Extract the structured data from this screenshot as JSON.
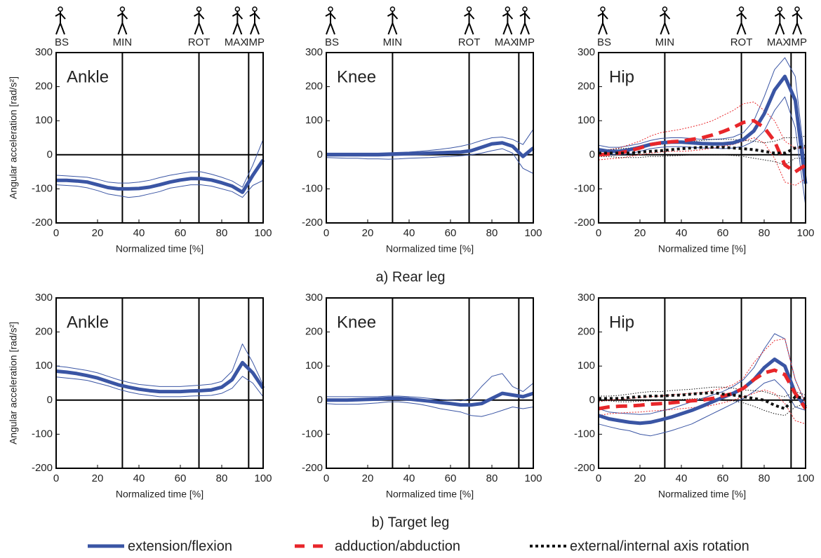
{
  "captions": [
    "a) Rear leg",
    "b) Target leg"
  ],
  "chart_data": [
    {
      "type": "line",
      "title": "Ankle",
      "ylabel": "Angular acceleration [rad/s²]",
      "xlabel": "Normalized time [%]",
      "phases": [
        "BS",
        "MIN",
        "ROT",
        "MAX",
        "IMP"
      ],
      "event_x": [
        32,
        69,
        93
      ],
      "xlim": [
        0,
        100
      ],
      "ylim": [
        -200,
        300
      ],
      "xticks": [
        0,
        20,
        40,
        60,
        80,
        100
      ],
      "yticks": [
        -200,
        -100,
        0,
        100,
        200,
        300
      ],
      "x": [
        0,
        5,
        10,
        15,
        20,
        25,
        30,
        35,
        40,
        45,
        50,
        55,
        60,
        65,
        70,
        75,
        80,
        85,
        90,
        95,
        100
      ],
      "series": [
        {
          "color": "#3a55a4",
          "style": "solid",
          "values": [
            -75,
            -75,
            -77,
            -80,
            -88,
            -96,
            -100,
            -100,
            -99,
            -95,
            -88,
            -80,
            -74,
            -70,
            -70,
            -74,
            -82,
            -92,
            -110,
            -60,
            -15
          ],
          "upper": [
            -60,
            -62,
            -64,
            -66,
            -72,
            -80,
            -83,
            -83,
            -80,
            -75,
            -67,
            -60,
            -55,
            -50,
            -50,
            -57,
            -66,
            -77,
            -95,
            -30,
            45
          ],
          "lower": [
            -88,
            -90,
            -92,
            -97,
            -105,
            -115,
            -120,
            -125,
            -122,
            -115,
            -108,
            -98,
            -93,
            -88,
            -88,
            -92,
            -100,
            -108,
            -125,
            -90,
            -75
          ]
        }
      ]
    },
    {
      "type": "line",
      "title": "Knee",
      "xlabel": "Normalized time [%]",
      "phases": [
        "BS",
        "MIN",
        "ROT",
        "MAX",
        "IMP"
      ],
      "event_x": [
        32,
        69,
        93
      ],
      "xlim": [
        0,
        100
      ],
      "ylim": [
        -200,
        300
      ],
      "xticks": [
        0,
        20,
        40,
        60,
        80,
        100
      ],
      "yticks": [
        -200,
        -100,
        0,
        100,
        200,
        300
      ],
      "x": [
        0,
        5,
        10,
        15,
        20,
        25,
        30,
        35,
        40,
        45,
        50,
        55,
        60,
        65,
        70,
        75,
        80,
        85,
        90,
        95,
        100
      ],
      "series": [
        {
          "color": "#3a55a4",
          "style": "solid",
          "values": [
            0,
            0,
            0,
            0,
            0,
            0,
            1,
            2,
            3,
            4,
            5,
            6,
            7,
            8,
            12,
            22,
            32,
            35,
            25,
            -5,
            20
          ],
          "upper": [
            5,
            5,
            5,
            5,
            5,
            5,
            6,
            7,
            8,
            10,
            13,
            16,
            20,
            25,
            32,
            42,
            50,
            52,
            45,
            30,
            75
          ],
          "lower": [
            -8,
            -9,
            -10,
            -10,
            -12,
            -12,
            -13,
            -12,
            -10,
            -9,
            -8,
            -6,
            -5,
            -3,
            0,
            5,
            12,
            18,
            5,
            -40,
            -55
          ]
        }
      ]
    },
    {
      "type": "line",
      "title": "Hip",
      "xlabel": "Normalized time [%]",
      "phases": [
        "BS",
        "MIN",
        "ROT",
        "MAX",
        "IMP"
      ],
      "event_x": [
        32,
        69,
        93
      ],
      "xlim": [
        0,
        100
      ],
      "ylim": [
        -200,
        300
      ],
      "xticks": [
        0,
        20,
        40,
        60,
        80,
        100
      ],
      "yticks": [
        -200,
        -100,
        0,
        100,
        200,
        300
      ],
      "x": [
        0,
        5,
        10,
        15,
        20,
        25,
        30,
        35,
        40,
        45,
        50,
        55,
        60,
        65,
        70,
        75,
        80,
        85,
        90,
        95,
        100
      ],
      "series": [
        {
          "color": "#3a55a4",
          "style": "solid",
          "values": [
            15,
            10,
            10,
            15,
            22,
            30,
            35,
            37,
            37,
            35,
            33,
            32,
            32,
            35,
            45,
            70,
            120,
            190,
            230,
            160,
            -85
          ],
          "upper": [
            28,
            22,
            22,
            27,
            33,
            42,
            48,
            50,
            50,
            48,
            45,
            45,
            47,
            52,
            65,
            100,
            170,
            250,
            285,
            230,
            -40
          ],
          "lower": [
            5,
            0,
            0,
            3,
            10,
            18,
            22,
            24,
            24,
            22,
            20,
            20,
            18,
            20,
            25,
            40,
            70,
            130,
            170,
            80,
            -150
          ]
        },
        {
          "color": "#e8262a",
          "style": "dashed",
          "values": [
            0,
            2,
            5,
            12,
            20,
            30,
            35,
            38,
            40,
            45,
            50,
            58,
            68,
            80,
            95,
            100,
            80,
            40,
            -30,
            -50,
            -30
          ],
          "upper": [
            15,
            15,
            20,
            30,
            40,
            55,
            65,
            70,
            75,
            82,
            90,
            100,
            115,
            130,
            150,
            155,
            130,
            100,
            40,
            20,
            20
          ],
          "lower": [
            -15,
            -12,
            -10,
            -5,
            0,
            5,
            8,
            10,
            10,
            12,
            15,
            20,
            25,
            30,
            40,
            50,
            35,
            -10,
            -80,
            -90,
            -70
          ]
        },
        {
          "color": "#111111",
          "style": "dotted",
          "values": [
            5,
            5,
            5,
            5,
            8,
            10,
            12,
            15,
            18,
            20,
            22,
            22,
            22,
            20,
            18,
            15,
            10,
            5,
            5,
            20,
            25
          ],
          "upper": [
            15,
            15,
            18,
            20,
            25,
            28,
            30,
            35,
            38,
            40,
            42,
            45,
            45,
            45,
            42,
            40,
            35,
            40,
            50,
            50,
            55
          ],
          "lower": [
            -5,
            -5,
            -8,
            -8,
            -8,
            -5,
            -5,
            -3,
            -2,
            0,
            0,
            0,
            0,
            -2,
            -5,
            -10,
            -15,
            -20,
            -30,
            -10,
            -10
          ]
        }
      ]
    },
    {
      "type": "line",
      "title": "Ankle",
      "ylabel": "Angular acceleration [rad/s²]",
      "xlabel": "Normalized time [%]",
      "event_x": [
        32,
        69,
        93
      ],
      "xlim": [
        0,
        100
      ],
      "ylim": [
        -200,
        300
      ],
      "xticks": [
        0,
        20,
        40,
        60,
        80,
        100
      ],
      "yticks": [
        -200,
        -100,
        0,
        100,
        200,
        300
      ],
      "x": [
        0,
        5,
        10,
        15,
        20,
        25,
        30,
        35,
        40,
        45,
        50,
        55,
        60,
        65,
        70,
        75,
        80,
        85,
        90,
        95,
        100
      ],
      "series": [
        {
          "color": "#3a55a4",
          "style": "solid",
          "values": [
            85,
            82,
            78,
            72,
            65,
            55,
            45,
            38,
            32,
            28,
            25,
            25,
            25,
            27,
            28,
            30,
            38,
            60,
            110,
            80,
            35
          ],
          "upper": [
            100,
            97,
            92,
            87,
            80,
            70,
            60,
            52,
            46,
            43,
            40,
            40,
            40,
            42,
            44,
            47,
            55,
            85,
            165,
            110,
            45
          ],
          "lower": [
            68,
            65,
            62,
            58,
            50,
            42,
            32,
            24,
            18,
            14,
            10,
            10,
            10,
            12,
            13,
            14,
            20,
            35,
            70,
            50,
            10
          ]
        }
      ]
    },
    {
      "type": "line",
      "title": "Knee",
      "xlabel": "Normalized time [%]",
      "event_x": [
        32,
        69,
        93
      ],
      "xlim": [
        0,
        100
      ],
      "ylim": [
        -200,
        300
      ],
      "xticks": [
        0,
        20,
        40,
        60,
        80,
        100
      ],
      "yticks": [
        -200,
        -100,
        0,
        100,
        200,
        300
      ],
      "x": [
        0,
        5,
        10,
        15,
        20,
        25,
        30,
        35,
        40,
        45,
        50,
        55,
        60,
        65,
        70,
        75,
        80,
        85,
        90,
        95,
        100
      ],
      "series": [
        {
          "color": "#3a55a4",
          "style": "solid",
          "values": [
            0,
            0,
            0,
            1,
            2,
            3,
            5,
            5,
            3,
            0,
            -3,
            -7,
            -10,
            -14,
            -14,
            -10,
            5,
            20,
            15,
            10,
            20
          ],
          "upper": [
            10,
            10,
            10,
            10,
            10,
            10,
            12,
            12,
            10,
            8,
            5,
            2,
            0,
            -2,
            5,
            40,
            70,
            78,
            40,
            25,
            50
          ],
          "lower": [
            -10,
            -12,
            -12,
            -12,
            -10,
            -8,
            -5,
            -5,
            -8,
            -12,
            -18,
            -25,
            -30,
            -35,
            -45,
            -48,
            -40,
            -30,
            -20,
            -25,
            -20
          ]
        }
      ]
    },
    {
      "type": "line",
      "title": "Hip",
      "xlabel": "Normalized time [%]",
      "event_x": [
        32,
        69,
        93
      ],
      "xlim": [
        0,
        100
      ],
      "ylim": [
        -200,
        300
      ],
      "xticks": [
        0,
        20,
        40,
        60,
        80,
        100
      ],
      "yticks": [
        -200,
        -100,
        0,
        100,
        200,
        300
      ],
      "x": [
        0,
        5,
        10,
        15,
        20,
        25,
        30,
        35,
        40,
        45,
        50,
        55,
        60,
        65,
        70,
        75,
        80,
        85,
        90,
        95,
        100
      ],
      "series": [
        {
          "name": "extension/flexion",
          "color": "#3a55a4",
          "style": "solid",
          "values": [
            -45,
            -55,
            -60,
            -65,
            -68,
            -65,
            -58,
            -50,
            -40,
            -30,
            -18,
            -5,
            8,
            20,
            35,
            60,
            95,
            120,
            100,
            20,
            -20
          ],
          "upper": [
            -25,
            -35,
            -38,
            -40,
            -42,
            -40,
            -32,
            -25,
            -15,
            -5,
            5,
            15,
            25,
            40,
            60,
            95,
            150,
            195,
            180,
            60,
            -10
          ],
          "lower": [
            -70,
            -78,
            -85,
            -90,
            -100,
            -105,
            -98,
            -90,
            -80,
            -70,
            -55,
            -40,
            -25,
            -10,
            5,
            25,
            50,
            60,
            30,
            -20,
            -30
          ]
        },
        {
          "name": "adduction/abduction",
          "color": "#e8262a",
          "style": "dashed",
          "values": [
            -25,
            -20,
            -18,
            -17,
            -15,
            -12,
            -10,
            -8,
            -5,
            -2,
            0,
            5,
            12,
            20,
            35,
            60,
            80,
            88,
            75,
            20,
            -25
          ],
          "upper": [
            -5,
            0,
            2,
            5,
            8,
            10,
            12,
            15,
            18,
            20,
            22,
            28,
            35,
            45,
            65,
            110,
            145,
            175,
            180,
            60,
            -10
          ],
          "lower": [
            -45,
            -40,
            -38,
            -36,
            -35,
            -32,
            -30,
            -28,
            -25,
            -22,
            -20,
            -15,
            -8,
            0,
            10,
            20,
            30,
            20,
            -10,
            -60,
            -70
          ]
        },
        {
          "name": "external/internal axis rotation",
          "color": "#111111",
          "style": "dotted",
          "values": [
            5,
            5,
            5,
            8,
            10,
            12,
            12,
            14,
            15,
            18,
            20,
            22,
            18,
            15,
            10,
            5,
            0,
            -15,
            -25,
            10,
            5
          ],
          "upper": [
            12,
            12,
            14,
            18,
            22,
            25,
            25,
            28,
            30,
            32,
            35,
            38,
            38,
            35,
            30,
            28,
            25,
            15,
            10,
            25,
            15
          ],
          "lower": [
            -2,
            -2,
            -5,
            -5,
            -3,
            -2,
            0,
            0,
            2,
            4,
            5,
            5,
            2,
            -2,
            -8,
            -18,
            -30,
            -40,
            -45,
            -20,
            -10
          ]
        }
      ]
    }
  ]
}
